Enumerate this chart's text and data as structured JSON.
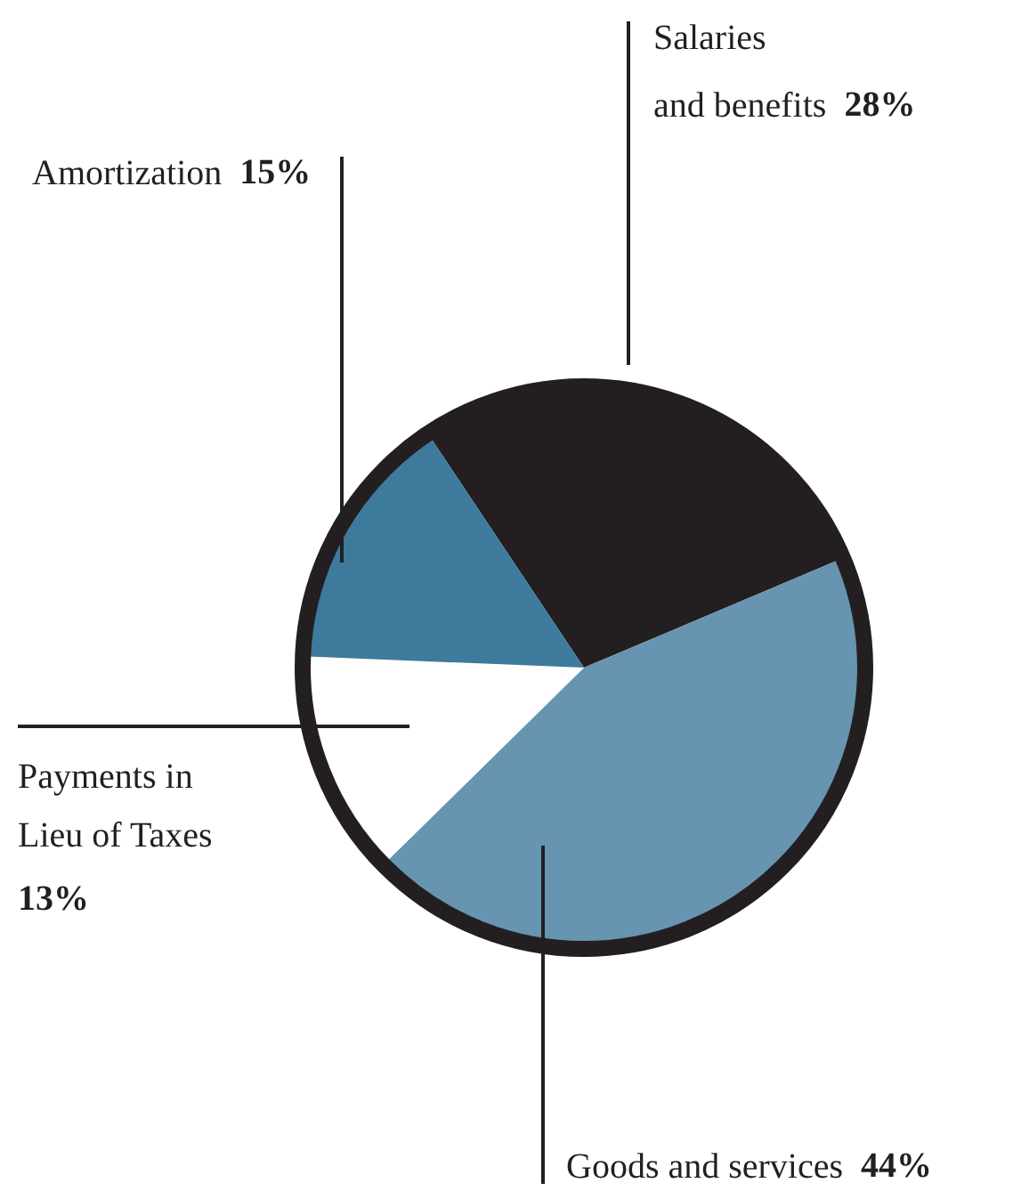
{
  "chart_data": {
    "type": "pie",
    "categories": [
      "Salaries and benefits",
      "Goods and services",
      "Payments in Lieu of Taxes",
      "Amortization"
    ],
    "values": [
      28,
      44,
      13,
      15
    ],
    "value_labels": [
      "28%",
      "44%",
      "13%",
      "15%"
    ],
    "colors": [
      "#231f20",
      "#6794b0",
      "#ffffff",
      "#3e7a9c"
    ]
  }
}
